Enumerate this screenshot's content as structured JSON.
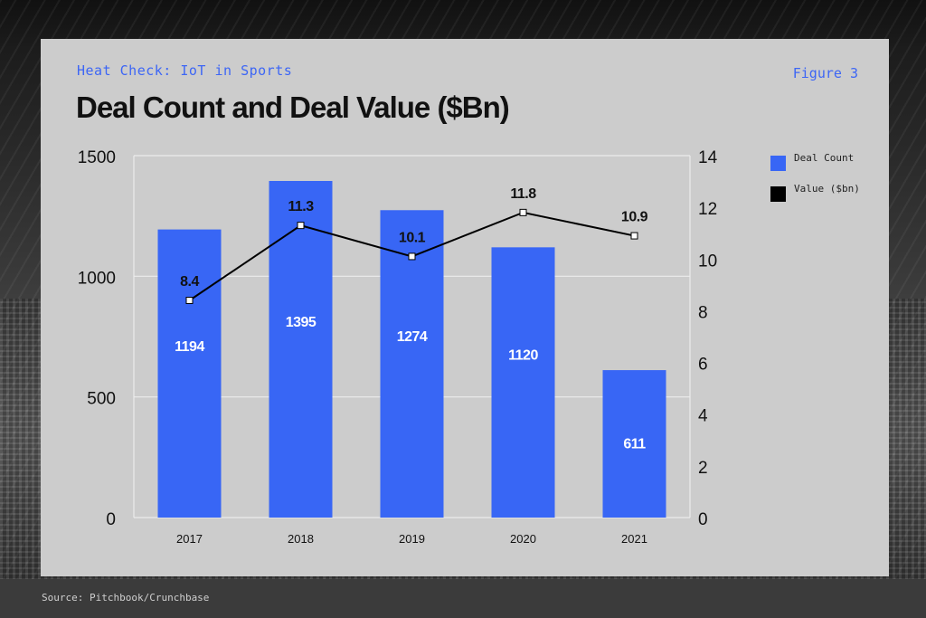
{
  "header": {
    "eyebrow": "Heat Check: IoT in Sports",
    "figure_label": "Figure 3",
    "title": "Deal Count and Deal Value ($Bn)"
  },
  "footer": {
    "source": "Source: Pitchbook/Crunchbase"
  },
  "legend": {
    "items": [
      {
        "label": "Deal Count",
        "color": "#3866f5"
      },
      {
        "label": "Value ($bn)",
        "color": "#000000"
      }
    ]
  },
  "chart_data": {
    "type": "bar",
    "categories": [
      "2017",
      "2018",
      "2019",
      "2020",
      "2021"
    ],
    "series": [
      {
        "name": "Deal Count",
        "type": "bar",
        "axis": "left",
        "color": "#3866f5",
        "values": [
          1194,
          1395,
          1274,
          1120,
          611
        ]
      },
      {
        "name": "Value ($bn)",
        "type": "line",
        "axis": "right",
        "color": "#000000",
        "values": [
          8.4,
          11.3,
          10.1,
          11.8,
          10.9
        ]
      }
    ],
    "y_left": {
      "lim": [
        0,
        1500
      ],
      "ticks": [
        "0",
        "500",
        "1000",
        "1500"
      ]
    },
    "y_right": {
      "lim": [
        0,
        14
      ],
      "ticks": [
        "0",
        "2",
        "4",
        "6",
        "8",
        "10",
        "12",
        "14"
      ]
    },
    "grid": true,
    "legend_position": "right"
  }
}
